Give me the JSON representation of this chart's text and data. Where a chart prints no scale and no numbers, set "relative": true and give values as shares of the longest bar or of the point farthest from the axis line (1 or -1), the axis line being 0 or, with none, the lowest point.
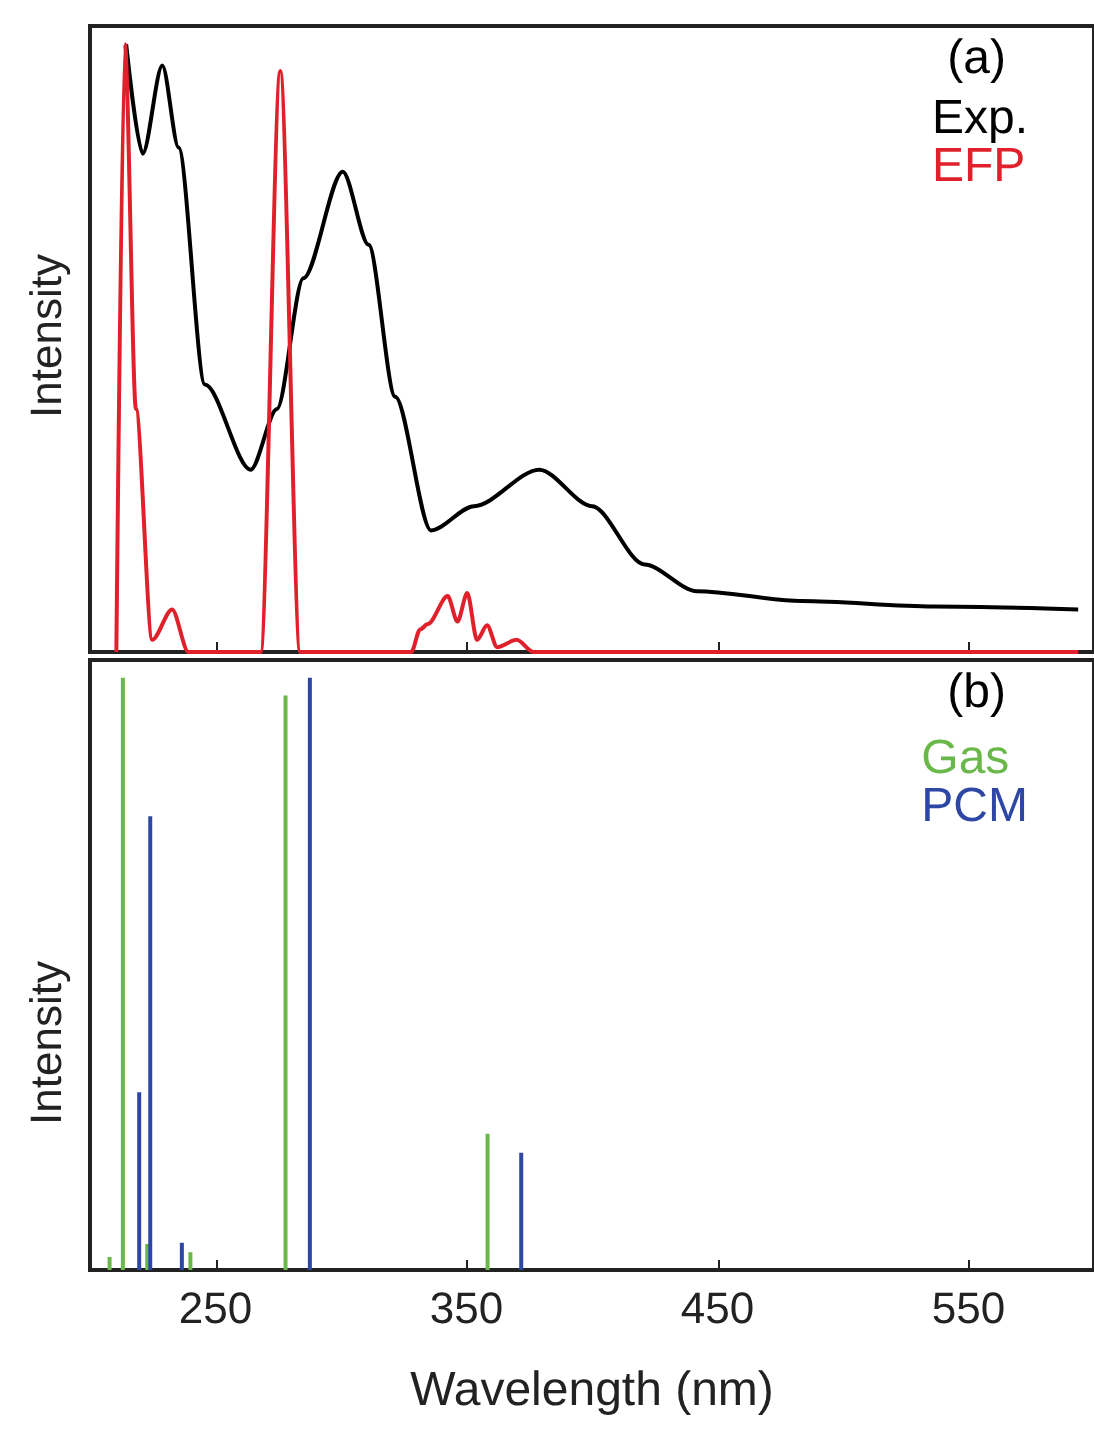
{
  "chart_data": [
    {
      "type": "line",
      "ylabel": "Intensity",
      "annotations": [
        "(a)"
      ],
      "relative": true,
      "xlim": [
        200,
        600
      ],
      "xticks": [
        250,
        350,
        450,
        550
      ],
      "tick_labels": false,
      "legend": "top right",
      "marker": "none",
      "line_style": "solid",
      "grid": false,
      "series": [
        {
          "name": "Exp.",
          "color": "#000000",
          "x": [
            214.4,
            221,
            228.8,
            235.3,
            245.8,
            264,
            274.5,
            285,
            300.7,
            311,
            321.6,
            335.9,
            353,
            379,
            400,
            420.9,
            441.8,
            483.6,
            535.9,
            593.7
          ],
          "values": [
            1.0,
            0.82,
            0.965,
            0.83,
            0.44,
            0.3,
            0.4,
            0.615,
            0.79,
            0.67,
            0.42,
            0.2,
            0.24,
            0.3,
            0.24,
            0.144,
            0.1,
            0.084,
            0.075,
            0.07
          ]
        },
        {
          "name": "EFP",
          "color": "#e0202a",
          "x": [
            210.5,
            213.9,
            218.3,
            224.8,
            232.7,
            239.2,
            268,
            275.8,
            283.7,
            328,
            331.5,
            334.6,
            342.5,
            346.4,
            350.3,
            354.2,
            358.2,
            362.2,
            370,
            376.6,
            593.7
          ],
          "values": [
            0,
            1.0,
            0.4,
            0.02,
            0.07,
            0,
            0,
            0.956,
            0,
            0,
            0.037,
            0.046,
            0.092,
            0.05,
            0.097,
            0.02,
            0.044,
            0.008,
            0.02,
            0,
            0
          ]
        }
      ]
    },
    {
      "type": "bar",
      "xlabel": "Wavelength (nm)",
      "ylabel": "Intensity",
      "annotations": [
        "(b)"
      ],
      "relative": true,
      "xlim": [
        200,
        600
      ],
      "xticks": [
        250,
        350,
        450,
        550
      ],
      "tick_labels": "x",
      "legend": "top right",
      "grid": false,
      "series": [
        {
          "name": "Gas",
          "color": "#6ab84a",
          "x": [
            207.8,
            213.1,
            222.8,
            240,
            277.9,
            358.4
          ],
          "values": [
            0.022,
            1.0,
            0.044,
            0.03,
            0.97,
            0.23
          ]
        },
        {
          "name": "PCM",
          "color": "#2e47a4",
          "x": [
            219.6,
            224,
            236.6,
            287.6,
            371.8
          ],
          "values": [
            0.3,
            0.766,
            0.046,
            1.0,
            0.198
          ]
        }
      ]
    }
  ]
}
